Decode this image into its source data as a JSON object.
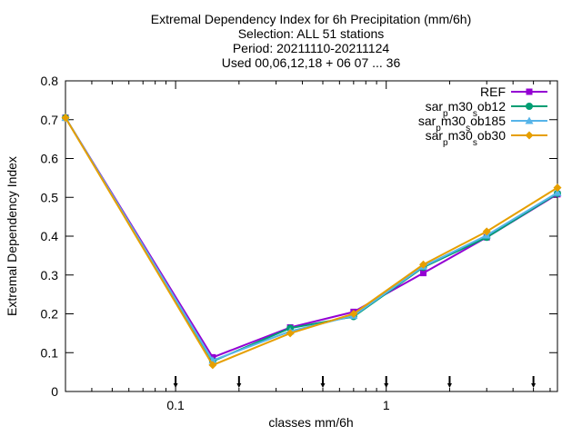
{
  "chart_data": {
    "type": "line",
    "title_lines": [
      "Extremal Dependency Index  for 6h Precipitation (mm/6h)",
      "Selection: ALL     51 stations",
      "Period: 20211110-20211124",
      "Used 00,06,12,18 + 06 07 ... 36"
    ],
    "xlabel": "classes mm/6h",
    "ylabel": "Extremal Dependency Index",
    "x_scale": "log",
    "xlim": [
      0.03,
      6.5
    ],
    "ylim": [
      0,
      0.8
    ],
    "x_ticks": [
      0.1,
      1
    ],
    "x_tick_labels": [
      "0.1",
      "1"
    ],
    "y_ticks": [
      0,
      0.1,
      0.2,
      0.3,
      0.4,
      0.5,
      0.6,
      0.7,
      0.8
    ],
    "y_tick_labels": [
      "0",
      "0.1",
      "0.2",
      "0.3",
      "0.4",
      "0.5",
      "0.6",
      "0.7",
      "0.8"
    ],
    "grid": false,
    "legend_position": "top-right",
    "threshold_markers_x": [
      0.1,
      0.2,
      0.5,
      1,
      2,
      5
    ],
    "x": [
      0.03,
      0.15,
      0.35,
      0.7,
      1.5,
      3,
      6.5
    ],
    "series": [
      {
        "name": "REF",
        "legend_parts": [
          [
            "REF",
            false
          ]
        ],
        "color": "#9400d3",
        "marker": "square",
        "values": [
          0.705,
          0.088,
          0.165,
          0.205,
          0.305,
          0.397,
          0.508
        ]
      },
      {
        "name": "sar_pm30_sob12",
        "legend_parts": [
          [
            "sar",
            false
          ],
          [
            "p",
            true
          ],
          [
            "m30",
            false
          ],
          [
            "s",
            true
          ],
          [
            "ob12",
            false
          ]
        ],
        "color": "#009e73",
        "marker": "circle",
        "values": [
          0.705,
          0.078,
          0.163,
          0.193,
          0.32,
          0.397,
          0.51
        ]
      },
      {
        "name": "sar_pm30_sob185",
        "legend_parts": [
          [
            "sar",
            false
          ],
          [
            "p",
            true
          ],
          [
            "m30",
            false
          ],
          [
            "s",
            true
          ],
          [
            "ob185",
            false
          ]
        ],
        "color": "#56b4e9",
        "marker": "triangle",
        "values": [
          0.705,
          0.08,
          0.155,
          0.195,
          0.322,
          0.402,
          0.512
        ]
      },
      {
        "name": "sar_pm30_sob30",
        "legend_parts": [
          [
            "sar",
            false
          ],
          [
            "p",
            true
          ],
          [
            "m30",
            false
          ],
          [
            "s",
            true
          ],
          [
            "ob30",
            false
          ]
        ],
        "color": "#e69f00",
        "marker": "diamond",
        "values": [
          0.705,
          0.068,
          0.15,
          0.2,
          0.327,
          0.412,
          0.525
        ]
      }
    ]
  }
}
